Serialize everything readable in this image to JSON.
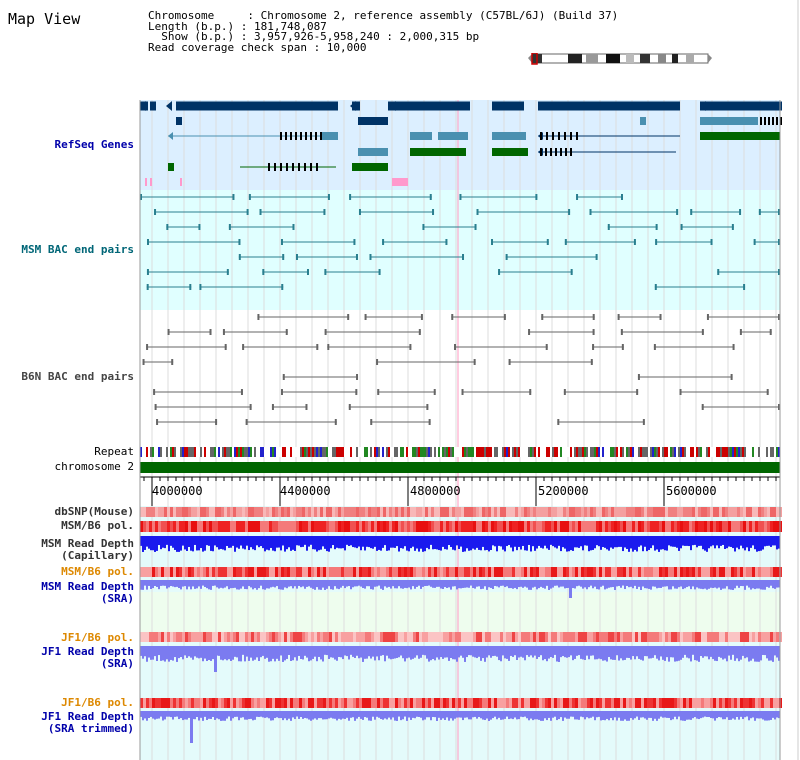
{
  "title": "Map View",
  "info": {
    "l1": "Chromosome     : Chromosome 2, reference assembly (C57BL/6J) (Build 37)",
    "l2": "Length (b.p.) : 181,748,087",
    "l3": "  Show (b.p.) : 3,957,926-5,958,240 : 2,000,315 bp",
    "l4": "Read coverage check span : 10,000"
  },
  "tracks": {
    "refseq": "RefSeq Genes",
    "msm_bac": "MSM BAC end pairs",
    "b6n_bac": "B6N BAC end pairs",
    "repeat": "Repeat",
    "chromosome": "chromosome 2",
    "dbsnp": "dbSNP(Mouse)",
    "msm_b6_pol_1": "MSM/B6 pol.",
    "msm_depth_cap_1": "MSM Read Depth",
    "msm_depth_cap_2": "(Capillary)",
    "msm_b6_pol_2": "MSM/B6 pol.",
    "msm_depth_sra_1": "MSM Read Depth",
    "msm_depth_sra_2": "(SRA)",
    "jf1_b6_pol_1": "JF1/B6 pol.",
    "jf1_depth_sra_1": "JF1 Read Depth",
    "jf1_depth_sra_2": "(SRA)",
    "jf1_b6_pol_2": "JF1/B6 pol.",
    "jf1_depth_trim_1": "JF1 Read Depth",
    "jf1_depth_trim_2": "(SRA trimmed)"
  },
  "axis": {
    "ticks": [
      "4000000",
      "4400000",
      "4800000",
      "5200000",
      "5600000"
    ]
  },
  "colors": {
    "refseq_bg": "#dcefff",
    "bac_bg": "#e0ffff",
    "gene_dark": "#003366",
    "gene_mid": "#4a90b0",
    "gene_green": "#006600",
    "chromosome": "#006600",
    "depth_blue": "#1a1aee",
    "depth_light": "#7b7bf0",
    "pol_red": "#ee2222",
    "msm_sra_bg": "#eefdee",
    "jf1_bg": "#e4fbfb"
  }
}
